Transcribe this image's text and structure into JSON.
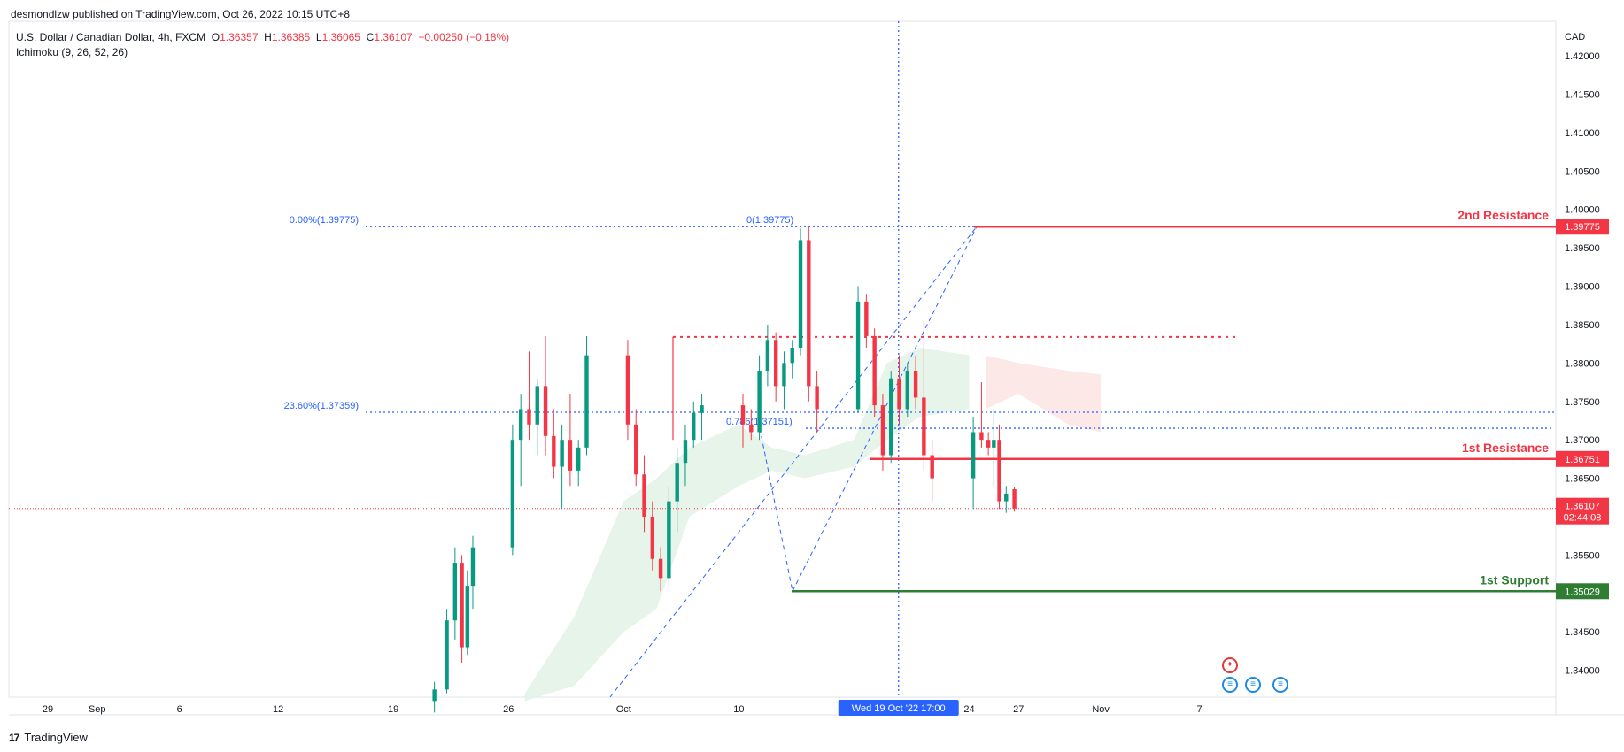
{
  "header": {
    "published": "desmondlzw published on TradingView.com, Oct 26, 2022 10:15 UTC+8",
    "symbol": "U.S. Dollar / Canadian Dollar, 4h, FXCM",
    "ohlc": {
      "o_label": "O",
      "o": "1.36357",
      "h_label": "H",
      "h": "1.36385",
      "l_label": "L",
      "l": "1.36065",
      "c_label": "C",
      "c": "1.36107",
      "change": "−0.00250 (−0.18%)"
    },
    "indicator": "Ichimoku (9, 26, 52, 26)"
  },
  "footer": {
    "brand": "TradingView",
    "logo_text": "17"
  },
  "icons": [
    "tradingview-logo-icon",
    "canada-flag-icon",
    "us-flag-icon"
  ],
  "colors": {
    "bull": "#089981",
    "bear": "#f23645",
    "resistance": "#f23645",
    "support": "#2e7d32",
    "fib": "#2962ff",
    "crosshair": "#2962ff",
    "cloud_bull": "#e3f2e6",
    "cloud_bear": "#fde4e4"
  },
  "chart_data": {
    "type": "candlestick",
    "currency": "CAD",
    "ylim": [
      1.3365,
      1.4245
    ],
    "y_ticks": [
      "1.34000",
      "1.34500",
      "1.35000",
      "1.35500",
      "1.36000",
      "1.36500",
      "1.37000",
      "1.37500",
      "1.38000",
      "1.38500",
      "1.39000",
      "1.39500",
      "1.40000",
      "1.40500",
      "1.41000",
      "1.41500",
      "1.42000"
    ],
    "x_ticks": [
      {
        "label": "29",
        "date": "2022-08-29"
      },
      {
        "label": "Sep",
        "date": "2022-09-01"
      },
      {
        "label": "6",
        "date": "2022-09-06"
      },
      {
        "label": "12",
        "date": "2022-09-12"
      },
      {
        "label": "19",
        "date": "2022-09-19"
      },
      {
        "label": "26",
        "date": "2022-09-26"
      },
      {
        "label": "Oct",
        "date": "2022-10-03"
      },
      {
        "label": "10",
        "date": "2022-10-10"
      },
      {
        "label": "17",
        "date": "2022-10-17"
      },
      {
        "label": "24",
        "date": "2022-10-24"
      },
      {
        "label": "27",
        "date": "2022-10-27"
      },
      {
        "label": "Nov",
        "date": "2022-11-01"
      },
      {
        "label": "7",
        "date": "2022-11-07"
      }
    ],
    "levels": [
      {
        "name": "2nd Resistance",
        "price": "1.39775",
        "value": 1.39775,
        "kind": "resistance"
      },
      {
        "name": "1st Resistance",
        "price": "1.36751",
        "value": 1.36751,
        "kind": "resistance"
      },
      {
        "name": "1st Support",
        "price": "1.35029",
        "value": 1.35029,
        "kind": "support"
      }
    ],
    "current_price": {
      "price": "1.36107",
      "value": 1.36107,
      "countdown": "02:44:08"
    },
    "fib_labels": [
      {
        "text": "0.00%(1.39775)",
        "value": 1.39775
      },
      {
        "text": "23.60%(1.37359)",
        "value": 1.37359
      },
      {
        "text": "0(1.39775)",
        "value": 1.39775
      },
      {
        "text": "0.786(1.37151)",
        "value": 1.37151
      }
    ],
    "dotted_resistance": 1.3834,
    "crosshair": {
      "label": "Wed 19 Oct '22   17:00",
      "date": "2022-10-19 17:00"
    },
    "candles": [
      {
        "d": "2022-09-21",
        "o": 1.336,
        "h": 1.3385,
        "l": 1.3345,
        "c": 1.3375
      },
      {
        "d": "2022-09-22",
        "o": 1.3375,
        "h": 1.348,
        "l": 1.337,
        "c": 1.3465
      },
      {
        "d": "2022-09-22",
        "o": 1.3465,
        "h": 1.356,
        "l": 1.344,
        "c": 1.354
      },
      {
        "d": "2022-09-23",
        "o": 1.354,
        "h": 1.355,
        "l": 1.341,
        "c": 1.343
      },
      {
        "d": "2022-09-23",
        "o": 1.343,
        "h": 1.353,
        "l": 1.342,
        "c": 1.351
      },
      {
        "d": "2022-09-23",
        "o": 1.351,
        "h": 1.3575,
        "l": 1.348,
        "c": 1.356
      },
      {
        "d": "2022-09-26",
        "o": 1.356,
        "h": 1.372,
        "l": 1.355,
        "c": 1.37
      },
      {
        "d": "2022-09-26",
        "o": 1.37,
        "h": 1.376,
        "l": 1.364,
        "c": 1.374
      },
      {
        "d": "2022-09-27",
        "o": 1.374,
        "h": 1.3815,
        "l": 1.37,
        "c": 1.372
      },
      {
        "d": "2022-09-27",
        "o": 1.372,
        "h": 1.378,
        "l": 1.368,
        "c": 1.377
      },
      {
        "d": "2022-09-28",
        "o": 1.377,
        "h": 1.3835,
        "l": 1.368,
        "c": 1.3705
      },
      {
        "d": "2022-09-28",
        "o": 1.3705,
        "h": 1.374,
        "l": 1.365,
        "c": 1.3665
      },
      {
        "d": "2022-09-29",
        "o": 1.3665,
        "h": 1.372,
        "l": 1.361,
        "c": 1.37
      },
      {
        "d": "2022-09-29",
        "o": 1.37,
        "h": 1.376,
        "l": 1.364,
        "c": 1.366
      },
      {
        "d": "2022-09-30",
        "o": 1.366,
        "h": 1.37,
        "l": 1.364,
        "c": 1.369
      },
      {
        "d": "2022-09-30",
        "o": 1.369,
        "h": 1.3835,
        "l": 1.368,
        "c": 1.381
      },
      {
        "d": "2022-10-03",
        "o": 1.381,
        "h": 1.383,
        "l": 1.37,
        "c": 1.372
      },
      {
        "d": "2022-10-03",
        "o": 1.372,
        "h": 1.374,
        "l": 1.364,
        "c": 1.3655
      },
      {
        "d": "2022-10-04",
        "o": 1.3655,
        "h": 1.368,
        "l": 1.358,
        "c": 1.36
      },
      {
        "d": "2022-10-04",
        "o": 1.36,
        "h": 1.362,
        "l": 1.353,
        "c": 1.3545
      },
      {
        "d": "2022-10-05",
        "o": 1.3545,
        "h": 1.356,
        "l": 1.3503,
        "c": 1.352
      },
      {
        "d": "2022-10-05",
        "o": 1.352,
        "h": 1.364,
        "l": 1.351,
        "c": 1.362
      },
      {
        "d": "2022-10-06",
        "o": 1.362,
        "h": 1.369,
        "l": 1.358,
        "c": 1.367
      },
      {
        "d": "2022-10-06",
        "o": 1.367,
        "h": 1.372,
        "l": 1.364,
        "c": 1.37
      },
      {
        "d": "2022-10-07",
        "o": 1.37,
        "h": 1.375,
        "l": 1.369,
        "c": 1.3735
      },
      {
        "d": "2022-10-07",
        "o": 1.3735,
        "h": 1.376,
        "l": 1.37,
        "c": 1.3745
      },
      {
        "d": "2022-10-10",
        "o": 1.3745,
        "h": 1.376,
        "l": 1.369,
        "c": 1.372
      },
      {
        "d": "2022-10-10",
        "o": 1.372,
        "h": 1.374,
        "l": 1.37,
        "c": 1.371
      },
      {
        "d": "2022-10-11",
        "o": 1.371,
        "h": 1.381,
        "l": 1.37,
        "c": 1.379
      },
      {
        "d": "2022-10-11",
        "o": 1.379,
        "h": 1.385,
        "l": 1.377,
        "c": 1.383
      },
      {
        "d": "2022-10-12",
        "o": 1.383,
        "h": 1.384,
        "l": 1.375,
        "c": 1.377
      },
      {
        "d": "2022-10-12",
        "o": 1.377,
        "h": 1.3815,
        "l": 1.374,
        "c": 1.38
      },
      {
        "d": "2022-10-13",
        "o": 1.38,
        "h": 1.383,
        "l": 1.378,
        "c": 1.382
      },
      {
        "d": "2022-10-13",
        "o": 1.382,
        "h": 1.3975,
        "l": 1.381,
        "c": 1.396
      },
      {
        "d": "2022-10-14",
        "o": 1.396,
        "h": 1.3978,
        "l": 1.375,
        "c": 1.377
      },
      {
        "d": "2022-10-14",
        "o": 1.377,
        "h": 1.379,
        "l": 1.371,
        "c": 1.374
      },
      {
        "d": "2022-10-17",
        "o": 1.374,
        "h": 1.39,
        "l": 1.3735,
        "c": 1.388
      },
      {
        "d": "2022-10-17",
        "o": 1.388,
        "h": 1.389,
        "l": 1.382,
        "c": 1.3835
      },
      {
        "d": "2022-10-18",
        "o": 1.3835,
        "h": 1.3845,
        "l": 1.373,
        "c": 1.3745
      },
      {
        "d": "2022-10-18",
        "o": 1.3745,
        "h": 1.376,
        "l": 1.366,
        "c": 1.368
      },
      {
        "d": "2022-10-19",
        "o": 1.368,
        "h": 1.379,
        "l": 1.367,
        "c": 1.378
      },
      {
        "d": "2022-10-19",
        "o": 1.378,
        "h": 1.381,
        "l": 1.372,
        "c": 1.374
      },
      {
        "d": "2022-10-20",
        "o": 1.374,
        "h": 1.38,
        "l": 1.373,
        "c": 1.379
      },
      {
        "d": "2022-10-20",
        "o": 1.379,
        "h": 1.381,
        "l": 1.374,
        "c": 1.3755
      },
      {
        "d": "2022-10-21",
        "o": 1.3755,
        "h": 1.3855,
        "l": 1.366,
        "c": 1.368
      },
      {
        "d": "2022-10-21",
        "o": 1.368,
        "h": 1.37,
        "l": 1.362,
        "c": 1.365
      },
      {
        "d": "2022-10-24",
        "o": 1.365,
        "h": 1.373,
        "l": 1.361,
        "c": 1.371
      },
      {
        "d": "2022-10-24",
        "o": 1.371,
        "h": 1.3775,
        "l": 1.369,
        "c": 1.37
      },
      {
        "d": "2022-10-25",
        "o": 1.37,
        "h": 1.371,
        "l": 1.368,
        "c": 1.369
      },
      {
        "d": "2022-10-25",
        "o": 1.369,
        "h": 1.374,
        "l": 1.364,
        "c": 1.37
      },
      {
        "d": "2022-10-25",
        "o": 1.37,
        "h": 1.372,
        "l": 1.361,
        "c": 1.362
      },
      {
        "d": "2022-10-26",
        "o": 1.362,
        "h": 1.364,
        "l": 1.3605,
        "c": 1.363
      },
      {
        "d": "2022-10-26",
        "o": 1.36357,
        "h": 1.36385,
        "l": 1.36065,
        "c": 1.36107
      }
    ],
    "cloud": [
      {
        "d": "2022-09-27",
        "top": 1.337,
        "bot": 1.336
      },
      {
        "d": "2022-09-30",
        "top": 1.347,
        "bot": 1.338
      },
      {
        "d": "2022-10-03",
        "top": 1.362,
        "bot": 1.345
      },
      {
        "d": "2022-10-05",
        "top": 1.365,
        "bot": 1.348
      },
      {
        "d": "2022-10-07",
        "top": 1.369,
        "bot": 1.36
      },
      {
        "d": "2022-10-10",
        "top": 1.372,
        "bot": 1.364
      },
      {
        "d": "2022-10-12",
        "top": 1.369,
        "bot": 1.366
      },
      {
        "d": "2022-10-14",
        "top": 1.368,
        "bot": 1.365
      },
      {
        "d": "2022-10-17",
        "top": 1.37,
        "bot": 1.3665
      },
      {
        "d": "2022-10-19",
        "top": 1.38,
        "bot": 1.37
      },
      {
        "d": "2022-10-21",
        "top": 1.382,
        "bot": 1.373
      },
      {
        "d": "2022-10-24",
        "top": 1.381,
        "bot": 1.374
      }
    ],
    "cloud_bear": [
      {
        "d": "2022-10-25",
        "top": 1.381,
        "bot": 1.374
      },
      {
        "d": "2022-10-27",
        "top": 1.38,
        "bot": 1.376
      },
      {
        "d": "2022-10-30",
        "top": 1.379,
        "bot": 1.372
      },
      {
        "d": "2022-11-01",
        "top": 1.3785,
        "bot": 1.371
      }
    ]
  }
}
